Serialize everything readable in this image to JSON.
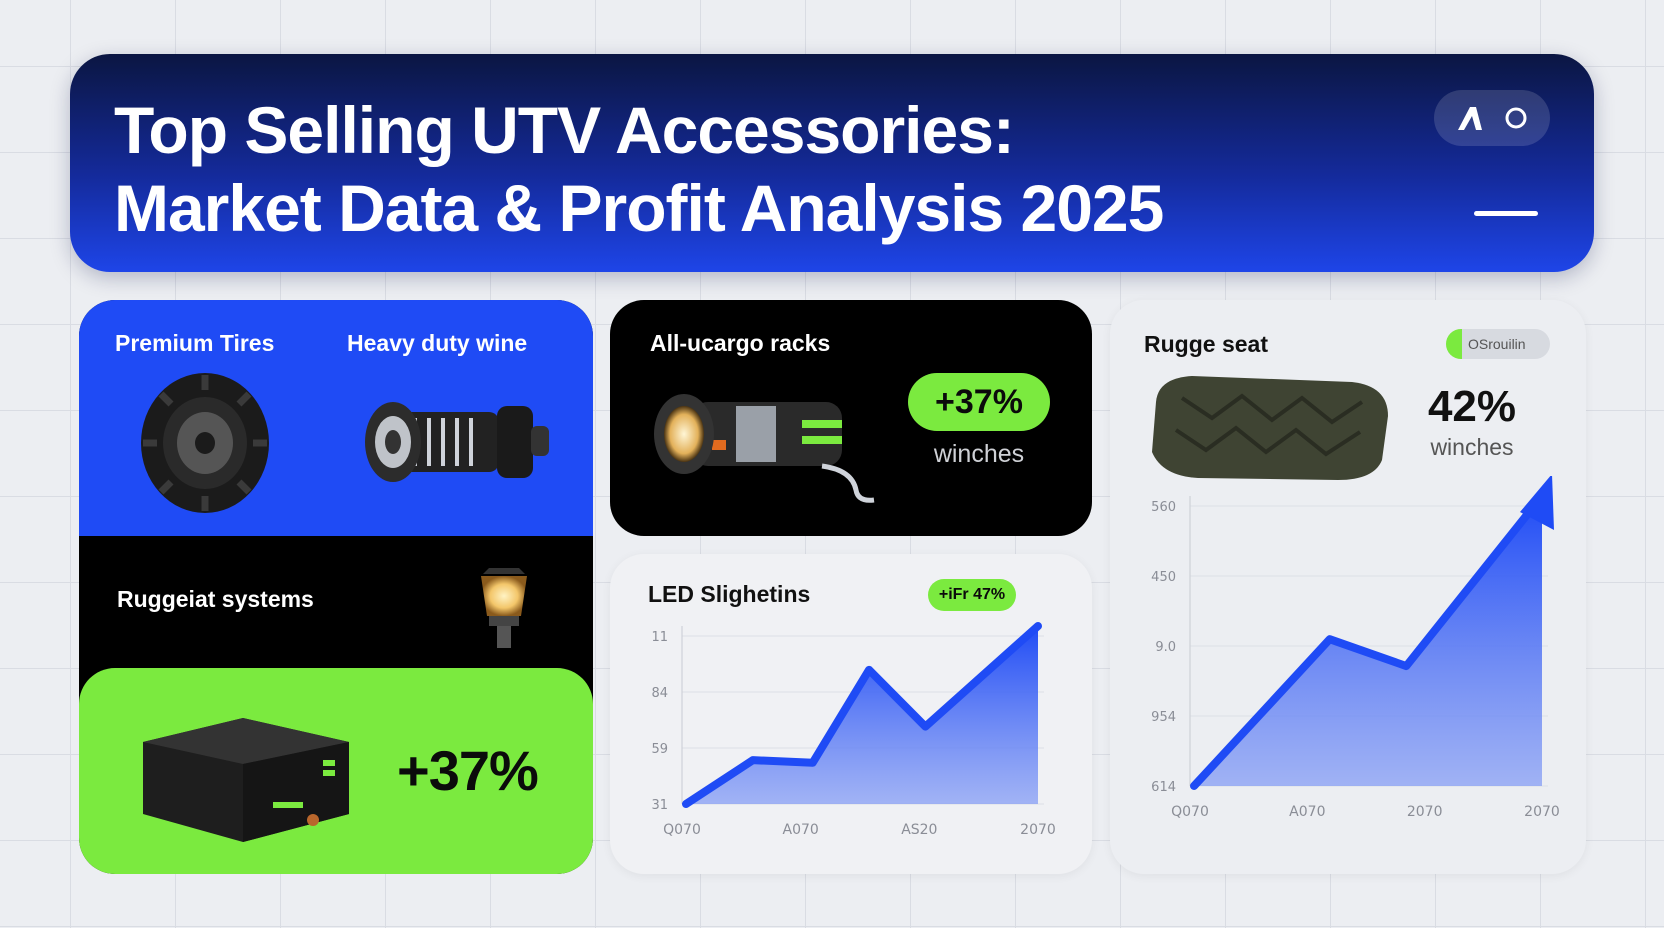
{
  "header": {
    "title_line1": "Top Selling UTV Accessories:",
    "title_line2": "Market Data & Profit Analysis 2025"
  },
  "left_panel": {
    "premium_tires": "Premium Tires",
    "heavy_duty": "Heavy duty wine",
    "systems": "Ruggeiat systems",
    "growth": "+37%"
  },
  "racks_card": {
    "title": "All-ucargo racks",
    "badge": "+37%",
    "sub": "winches"
  },
  "led_card": {
    "title": "LED Slighetins",
    "badge": "+iFr 47%"
  },
  "seat_card": {
    "title": "Rugge seat",
    "toggle_label": "OSrouilin",
    "big_value": "42%",
    "sub": "winches"
  },
  "colors": {
    "blue": "#1f4bf5",
    "green": "#7bea3f",
    "navy": "#0b1642"
  },
  "chart_data": [
    {
      "type": "area",
      "title": "LED Slighetins",
      "categories": [
        "Q070",
        "A070",
        "AS20",
        "2070"
      ],
      "y_ticks": [
        "11",
        "84",
        "59",
        "31"
      ],
      "series": [
        {
          "values": [
            31,
            48,
            47,
            83,
            61,
            100
          ],
          "x": [
            0,
            0.19,
            0.36,
            0.52,
            0.68,
            1
          ]
        }
      ],
      "ylim": [
        31,
        100
      ],
      "grid": true
    },
    {
      "type": "area",
      "title": "Rugge seat",
      "categories": [
        "Q070",
        "A070",
        "2070",
        "2070"
      ],
      "y_ticks": [
        "560",
        "450",
        "9.0",
        "954",
        "614"
      ],
      "series": [
        {
          "values": [
            614,
            860,
            815,
            1100
          ],
          "x": [
            0,
            0.39,
            0.61,
            1
          ]
        }
      ],
      "ylim": [
        614,
        1100
      ],
      "grid": true
    }
  ]
}
